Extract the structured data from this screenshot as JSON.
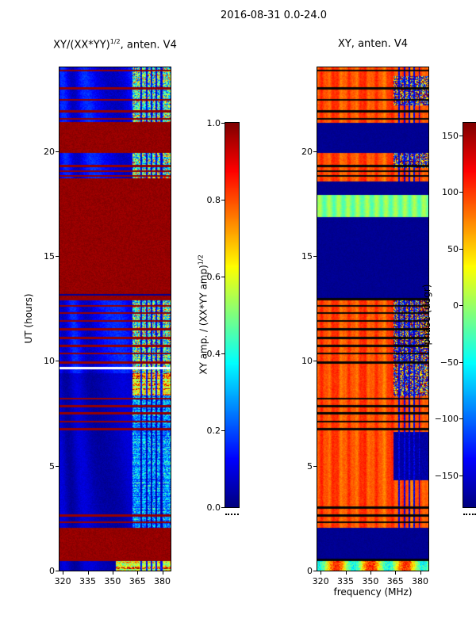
{
  "figure": {
    "title": "2016-08-31 0.0-24.0"
  },
  "panels": {
    "left": {
      "title_main": "XY/(XX*YY)",
      "title_sup": "1/2",
      "title_rest": ", anten. V4",
      "ylabel": "UT (hours)",
      "xticks": [
        "320",
        "335",
        "350",
        "365",
        "380"
      ],
      "yticks": [
        "0",
        "5",
        "10",
        "15",
        "20"
      ]
    },
    "right": {
      "title": "XY, anten. V4",
      "xlabel": "frequency (MHz)",
      "xticks": [
        "320",
        "335",
        "350",
        "365",
        "380"
      ],
      "yticks": [
        "0",
        "5",
        "10",
        "15",
        "20"
      ]
    }
  },
  "colorbars": {
    "left": {
      "label_main": "XY amp. / (XX*YY amp)",
      "label_sup": "1/2",
      "tick_labels": [
        "1.0",
        "0.8",
        "0.6",
        "0.4",
        "0.2",
        "0.0"
      ],
      "tick_values": [
        1.0,
        0.8,
        0.6,
        0.4,
        0.2,
        0.0
      ],
      "range": [
        0.0,
        1.0
      ],
      "colormap": "jet"
    },
    "right": {
      "label": "phase (degr)",
      "tick_labels": [
        "150",
        "100",
        "50",
        "0",
        "−50",
        "−100",
        "−150"
      ],
      "tick_values": [
        150,
        100,
        50,
        0,
        -50,
        -100,
        -150
      ],
      "range": [
        -178,
        161
      ],
      "colormap": "jet"
    }
  },
  "chart_data": [
    {
      "type": "heatmap",
      "panel": "left",
      "title": "XY/(XX*YY)^(1/2), anten. V4",
      "xlabel": "frequency (MHz)",
      "ylabel": "UT (hours)",
      "x_range_mhz": [
        318,
        385
      ],
      "y_range_hours": [
        0,
        24
      ],
      "xticks": [
        320,
        335,
        350,
        365,
        380
      ],
      "yticks": [
        0,
        5,
        10,
        15,
        20
      ],
      "colorbar": {
        "label": "XY amp. / (XX*YY amp)^(1/2)",
        "range": [
          0,
          1
        ],
        "ticks": [
          0.0,
          0.2,
          0.4,
          0.6,
          0.8,
          1.0
        ],
        "colormap": "jet"
      },
      "active_freq_from_mhz": 362,
      "rfi_lines_mhz": [
        367.5,
        370.5,
        373.5,
        376.5,
        379.5
      ],
      "bands": [
        {
          "t0": 0.0,
          "t1": 0.55,
          "base": "blue",
          "active": "hot",
          "active_from": 352
        },
        {
          "t0": 0.55,
          "t1": 2.05,
          "base": "maroon"
        },
        {
          "t0": 2.05,
          "t1": 8.35,
          "base": "blue",
          "active": "cyan"
        },
        {
          "t0": 8.35,
          "t1": 9.4,
          "base": "blue",
          "active": "hot"
        },
        {
          "t0": 9.4,
          "t1": 13.0,
          "base": "blue2",
          "active": "mid"
        },
        {
          "t0": 13.0,
          "t1": 18.7,
          "base": "maroon"
        },
        {
          "t0": 18.7,
          "t1": 19.9,
          "base": "blue2",
          "active": "mid"
        },
        {
          "t0": 19.9,
          "t1": 21.4,
          "base": "maroon"
        },
        {
          "t0": 21.4,
          "t1": 24.0,
          "base": "blue2",
          "active": "mid"
        }
      ],
      "hlines": [
        {
          "t": 0.5,
          "c": "maroon"
        },
        {
          "t": 2.3,
          "c": "maroon"
        },
        {
          "t": 2.62,
          "c": "maroon"
        },
        {
          "t": 6.75,
          "c": "maroon"
        },
        {
          "t": 7.1,
          "c": "maroon"
        },
        {
          "t": 7.5,
          "c": "maroon"
        },
        {
          "t": 7.85,
          "c": "maroon"
        },
        {
          "t": 8.2,
          "c": "maroon"
        },
        {
          "t": 9.65,
          "c": "white"
        },
        {
          "t": 9.92,
          "c": "maroon"
        },
        {
          "t": 10.35,
          "c": "maroon"
        },
        {
          "t": 10.72,
          "c": "maroon"
        },
        {
          "t": 11.1,
          "c": "maroon"
        },
        {
          "t": 11.5,
          "c": "maroon"
        },
        {
          "t": 11.9,
          "c": "maroon"
        },
        {
          "t": 12.28,
          "c": "maroon"
        },
        {
          "t": 12.62,
          "c": "maroon"
        },
        {
          "t": 12.95,
          "c": "maroon"
        },
        {
          "t": 13.15,
          "c": "navy"
        },
        {
          "t": 18.82,
          "c": "maroon"
        },
        {
          "t": 19.05,
          "c": "maroon"
        },
        {
          "t": 19.3,
          "c": "maroon"
        },
        {
          "t": 21.55,
          "c": "maroon"
        },
        {
          "t": 21.9,
          "c": "maroon"
        },
        {
          "t": 22.45,
          "c": "maroon"
        },
        {
          "t": 23.0,
          "c": "maroon"
        },
        {
          "t": 23.85,
          "c": "maroon"
        }
      ]
    },
    {
      "type": "heatmap",
      "panel": "right",
      "title": "XY, anten. V4",
      "xlabel": "frequency (MHz)",
      "ylabel": "UT (hours)",
      "x_range_mhz": [
        318,
        385
      ],
      "y_range_hours": [
        0,
        24
      ],
      "xticks": [
        320,
        335,
        350,
        365,
        380
      ],
      "yticks": [
        0,
        5,
        10,
        15,
        20
      ],
      "colorbar": {
        "label": "phase (degr)",
        "range": [
          -178,
          161
        ],
        "ticks": [
          -150,
          -100,
          -50,
          0,
          50,
          100,
          150
        ],
        "colormap": "jet"
      },
      "rfi_lines_mhz": [
        367.5,
        370.5,
        373.5,
        376.5,
        379.5
      ],
      "bands": [
        {
          "t0": 0.0,
          "t1": 0.55,
          "base": "rainbow"
        },
        {
          "t0": 0.55,
          "t1": 2.05,
          "base": "darkblue"
        },
        {
          "t0": 2.05,
          "t1": 6.6,
          "base": "orange",
          "active": "blob",
          "active_t0": 4.3,
          "active_t1": 6.6
        },
        {
          "t0": 6.6,
          "t1": 13.0,
          "base": "orange",
          "active": "chaos",
          "active_t0": 8.3,
          "active_t1": 13.0
        },
        {
          "t0": 13.0,
          "t1": 16.85,
          "base": "darkblue"
        },
        {
          "t0": 16.85,
          "t1": 17.9,
          "base": "green"
        },
        {
          "t0": 17.9,
          "t1": 18.55,
          "base": "darkblue"
        },
        {
          "t0": 18.55,
          "t1": 19.9,
          "base": "orange",
          "active": "chaos",
          "active_t0": 19.2,
          "active_t1": 19.9
        },
        {
          "t0": 19.9,
          "t1": 21.35,
          "base": "darkblue"
        },
        {
          "t0": 21.35,
          "t1": 24.0,
          "base": "orange",
          "active": "chaos",
          "active_t0": 22.2,
          "active_t1": 23.6
        }
      ],
      "hlines": [
        {
          "t": 0.5,
          "c": "black"
        },
        {
          "t": 2.3,
          "c": "black"
        },
        {
          "t": 2.62,
          "c": "black"
        },
        {
          "t": 3.0,
          "c": "black"
        },
        {
          "t": 6.75,
          "c": "black"
        },
        {
          "t": 7.1,
          "c": "black"
        },
        {
          "t": 7.5,
          "c": "black"
        },
        {
          "t": 7.85,
          "c": "black"
        },
        {
          "t": 8.2,
          "c": "black"
        },
        {
          "t": 9.92,
          "c": "black"
        },
        {
          "t": 10.35,
          "c": "black"
        },
        {
          "t": 10.72,
          "c": "black"
        },
        {
          "t": 11.1,
          "c": "black"
        },
        {
          "t": 11.5,
          "c": "black"
        },
        {
          "t": 11.9,
          "c": "black"
        },
        {
          "t": 12.28,
          "c": "black"
        },
        {
          "t": 12.62,
          "c": "black"
        },
        {
          "t": 12.95,
          "c": "black"
        },
        {
          "t": 18.82,
          "c": "black"
        },
        {
          "t": 19.05,
          "c": "black"
        },
        {
          "t": 19.3,
          "c": "black"
        },
        {
          "t": 21.55,
          "c": "black"
        },
        {
          "t": 21.9,
          "c": "black"
        },
        {
          "t": 22.45,
          "c": "black"
        },
        {
          "t": 23.0,
          "c": "black"
        },
        {
          "t": 23.85,
          "c": "black"
        }
      ]
    }
  ]
}
